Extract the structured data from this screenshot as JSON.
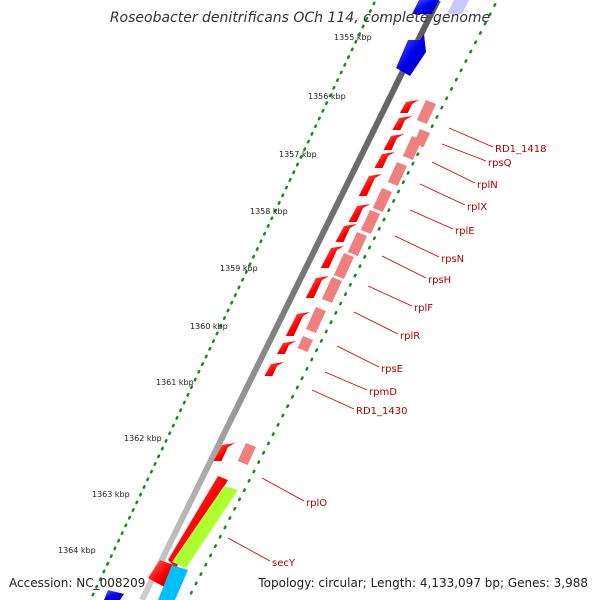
{
  "title": "Roseobacter denitrificans OCh 114, complete genome",
  "kbp_labels": [
    "1355 kbp",
    "1356 kbp",
    "1357 kbp",
    "1358 kbp",
    "1359 kbp",
    "1360 kbp",
    "1361 kbp",
    "1362 kbp",
    "1363 kbp",
    "1364 kbp"
  ],
  "genes": [
    "RD1_1418",
    "rpsQ",
    "rplN",
    "rplX",
    "rplE",
    "rpsN",
    "rpsH",
    "rplF",
    "rplR",
    "rpsE",
    "rpmD",
    "RD1_1430",
    "rplO",
    "secY"
  ],
  "footer": {
    "accession": "Accession: NC_008209",
    "summary": "Topology: circular; Length: 4,133,097 bp; Genes: 3,988"
  },
  "colors": {
    "backbone": "#888888",
    "tick_dots": "#1a8a1a",
    "gene_red": "#ff0000",
    "gene_pink": "#f08080",
    "gene_blue": "#0000ee",
    "gene_lightblue": "#c8c8ff",
    "gene_green": "#adff2f",
    "gene_cyan": "#00bfff",
    "label_red": "#cc0000"
  }
}
